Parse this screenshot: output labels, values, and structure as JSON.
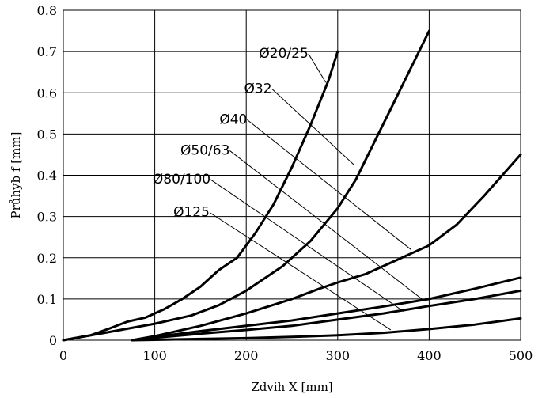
{
  "chart_data": {
    "type": "line",
    "xlabel": "Zdvih X [mm]",
    "ylabel": "Průhyb f [mm]",
    "xlim": [
      0,
      500
    ],
    "ylim": [
      0,
      0.8
    ],
    "xticks": [
      "0",
      "100",
      "200",
      "300",
      "400",
      "500"
    ],
    "yticks": [
      "0",
      "0.1",
      "0.2",
      "0.3",
      "0.4",
      "0.5",
      "0.6",
      "0.7",
      "0.8"
    ],
    "grid": true,
    "series": [
      {
        "name": "Ø20/25",
        "x": [
          0,
          30,
          50,
          70,
          90,
          110,
          130,
          150,
          170,
          190,
          210,
          230,
          250,
          270,
          290,
          300
        ],
        "y": [
          0,
          0.012,
          0.028,
          0.045,
          0.055,
          0.075,
          0.1,
          0.13,
          0.17,
          0.2,
          0.26,
          0.33,
          0.42,
          0.52,
          0.63,
          0.7
        ],
        "label_x": 268,
        "label_y": 0.685,
        "leader_x": 287,
        "leader_y": 0.625
      },
      {
        "name": "Ø32",
        "x": [
          0,
          50,
          100,
          140,
          170,
          200,
          240,
          270,
          300,
          320,
          340,
          360,
          380,
          400
        ],
        "y": [
          0,
          0.02,
          0.04,
          0.06,
          0.085,
          0.12,
          0.18,
          0.24,
          0.32,
          0.39,
          0.48,
          0.57,
          0.66,
          0.75
        ],
        "label_x": 228,
        "label_y": 0.6,
        "leader_x": 318,
        "leader_y": 0.425
      },
      {
        "name": "Ø40",
        "x": [
          75,
          100,
          150,
          200,
          250,
          280,
          300,
          330,
          360,
          400,
          430,
          460,
          500
        ],
        "y": [
          0,
          0.01,
          0.035,
          0.065,
          0.1,
          0.125,
          0.14,
          0.16,
          0.19,
          0.23,
          0.28,
          0.35,
          0.45
        ],
        "label_x": 201,
        "label_y": 0.525,
        "leader_x": 380,
        "leader_y": 0.22
      },
      {
        "name": "Ø50/63",
        "x": [
          75,
          100,
          150,
          200,
          250,
          300,
          350,
          400,
          450,
          500
        ],
        "y": [
          0,
          0.008,
          0.022,
          0.035,
          0.048,
          0.065,
          0.082,
          0.1,
          0.125,
          0.152
        ],
        "label_x": 182,
        "label_y": 0.45,
        "leader_x": 392,
        "leader_y": 0.1
      },
      {
        "name": "Ø80/100",
        "x": [
          75,
          100,
          150,
          200,
          250,
          300,
          350,
          400,
          450,
          500
        ],
        "y": [
          0,
          0.006,
          0.016,
          0.025,
          0.035,
          0.05,
          0.065,
          0.083,
          0.1,
          0.12
        ],
        "label_x": 161,
        "label_y": 0.38,
        "leader_x": 372,
        "leader_y": 0.07
      },
      {
        "name": "Ø125",
        "x": [
          75,
          100,
          150,
          200,
          250,
          300,
          350,
          400,
          450,
          500
        ],
        "y": [
          0,
          0.001,
          0.003,
          0.005,
          0.008,
          0.012,
          0.018,
          0.027,
          0.038,
          0.053
        ],
        "label_x": 160,
        "label_y": 0.3,
        "leader_x": 358,
        "leader_y": 0.025
      }
    ]
  }
}
